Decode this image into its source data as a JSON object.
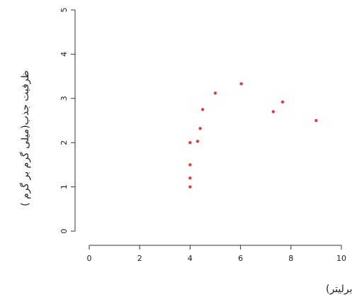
{
  "chart_data": {
    "type": "scatter",
    "x_label": "غلظت باقی مانده فلوراید(میلی گرم برلیتر)",
    "y_label": "ظرفیت جذب(میلی گرم بر گرم )",
    "color": "#e8383d",
    "x": [
      4.0,
      4.0,
      4.0,
      4.0,
      4.3,
      4.4,
      4.5,
      5.0,
      6.03,
      7.3,
      7.67,
      9.0
    ],
    "values": [
      2.0,
      1.5,
      1.2,
      1.0,
      2.03,
      2.32,
      2.75,
      3.12,
      3.33,
      2.7,
      2.92,
      2.5
    ],
    "xlim": [
      0,
      10
    ],
    "xticks": [
      0,
      2,
      4,
      6,
      8,
      10
    ],
    "ylim": [
      0,
      5
    ],
    "yticks": [
      0,
      1,
      2,
      3,
      4,
      5
    ]
  }
}
